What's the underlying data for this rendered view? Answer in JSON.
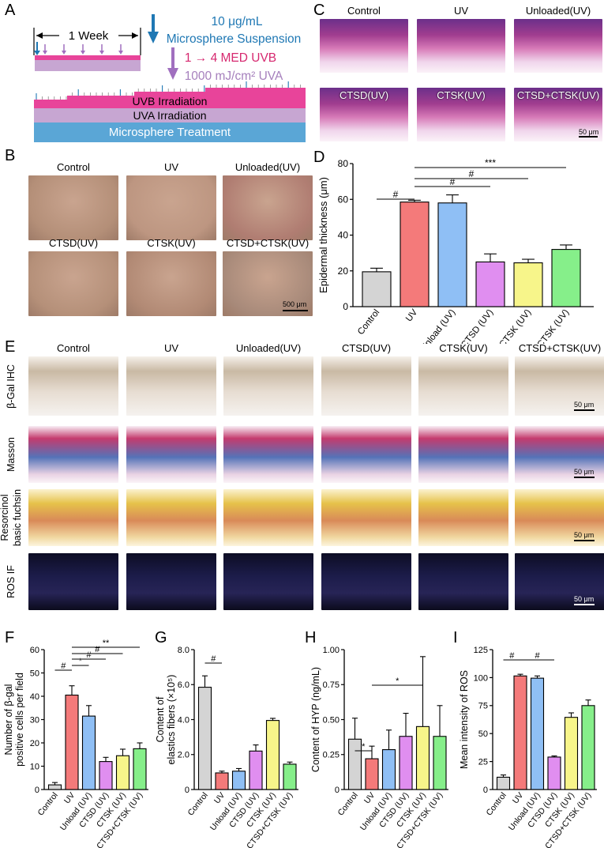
{
  "panels": {
    "A": {
      "letter": "A",
      "week_label": "1 Week",
      "dose_label": "10 μg/mL",
      "suspension_label": "Microsphere Suspension",
      "uvb_label": "1 → 4 MED UVB",
      "uva_label": "1000 mJ/cm² UVA",
      "bars": [
        "UVB Irradiation",
        "UVA Irradiation",
        "Microsphere Treatment"
      ],
      "colors": {
        "uvb": "#e8449a",
        "uva": "#c7a6d2",
        "treat": "#5aa6d6",
        "arrow_blue": "#1f78b4",
        "arrow_purple": "#a06fbf"
      }
    },
    "B": {
      "letter": "B",
      "labels": [
        "Control",
        "UV",
        "Unloaded(UV)",
        "CTSD(UV)",
        "CTSK(UV)",
        "CTSD+CTSK(UV)"
      ],
      "scale": "500 μm"
    },
    "C": {
      "letter": "C",
      "labels": [
        "Control",
        "UV",
        "Unloaded(UV)",
        "CTSD(UV)",
        "CTSK(UV)",
        "CTSD+CTSK(UV)"
      ],
      "scale": "50 μm"
    },
    "E": {
      "letter": "E",
      "columns": [
        "Control",
        "UV",
        "Unloaded(UV)",
        "CTSD(UV)",
        "CTSK(UV)",
        "CTSD+CTSK(UV)"
      ],
      "rows": [
        "β-Gal IHC",
        "Masson",
        "Resorcinol basic fuchsin",
        "ROS IF"
      ],
      "scales": [
        "50 μm",
        "50 μm",
        "50 μm",
        "50 μm"
      ]
    }
  },
  "chart_data": [
    {
      "id": "D",
      "letter": "D",
      "type": "bar",
      "categories": [
        "Control",
        "UV",
        "Unload (UV)",
        "CTSD (UV)",
        "CTSK (UV)",
        "CTSD+CTSK (UV)"
      ],
      "values": [
        19.5,
        58.5,
        58,
        25,
        24.5,
        32
      ],
      "errors": [
        2,
        1,
        4.5,
        4.5,
        2,
        2.5
      ],
      "colors": [
        "#d4d4d4",
        "#f47a7a",
        "#8fbff5",
        "#e08ef0",
        "#f7f58a",
        "#86ef8a"
      ],
      "ylabel": "Epidermal thickness (μm)",
      "ylim": [
        0,
        80
      ],
      "yticks": [
        0,
        20,
        40,
        60,
        80
      ],
      "annotations": [
        {
          "from": 0,
          "to": 1,
          "label": "#"
        },
        {
          "from": 1,
          "to": 3,
          "label": "#"
        },
        {
          "from": 1,
          "to": 4,
          "label": "#"
        },
        {
          "from": 1,
          "to": 5,
          "label": "***"
        }
      ]
    },
    {
      "id": "F",
      "letter": "F",
      "type": "bar",
      "categories": [
        "Control",
        "UV",
        "Unload (UV)",
        "CTSD (UV)",
        "CTSK (UV)",
        "CTSD+CTSK (UV)"
      ],
      "values": [
        2,
        40.5,
        31.5,
        12,
        14.5,
        17.5
      ],
      "errors": [
        1,
        4,
        4.5,
        1.8,
        2.8,
        2.5
      ],
      "colors": [
        "#d4d4d4",
        "#f47a7a",
        "#8fbff5",
        "#e08ef0",
        "#f7f58a",
        "#86ef8a"
      ],
      "ylabel": "Number of β-gal positive cells per field",
      "ylim": [
        0,
        60
      ],
      "yticks": [
        0,
        10,
        20,
        30,
        40,
        50,
        60
      ],
      "annotations": [
        {
          "from": 0,
          "to": 1,
          "label": "#"
        },
        {
          "from": 1,
          "to": 2,
          "label": "*"
        },
        {
          "from": 1,
          "to": 3,
          "label": "#"
        },
        {
          "from": 1,
          "to": 4,
          "label": "#"
        },
        {
          "from": 1,
          "to": 5,
          "label": "**"
        }
      ]
    },
    {
      "id": "G",
      "letter": "G",
      "type": "bar",
      "categories": [
        "Control",
        "UV",
        "Unload (UV)",
        "CTSD (UV)",
        "CTSK (UV)",
        "CTSD+CTSK (UV)"
      ],
      "values": [
        5.85,
        0.95,
        1.05,
        2.2,
        3.95,
        1.45
      ],
      "errors": [
        0.65,
        0.1,
        0.15,
        0.35,
        0.12,
        0.12
      ],
      "colors": [
        "#d4d4d4",
        "#f47a7a",
        "#8fbff5",
        "#e08ef0",
        "#f7f58a",
        "#86ef8a"
      ],
      "ylabel": "Content of elastics fibers (×10⁵)",
      "ylim": [
        0,
        8
      ],
      "yticks": [
        0,
        2,
        4,
        6,
        8
      ],
      "ytick_labels": [
        "0",
        "2.0",
        "4.0",
        "6.0",
        "8.0"
      ],
      "annotations": [
        {
          "from": 0,
          "to": 1,
          "label": "#"
        }
      ]
    },
    {
      "id": "H",
      "letter": "H",
      "type": "bar",
      "categories": [
        "Control",
        "UV",
        "Unload (UV)",
        "CTSD (UV)",
        "CTSK (UV)",
        "CTSD+CTSK (UV)"
      ],
      "values": [
        0.36,
        0.22,
        0.285,
        0.38,
        0.45,
        0.38
      ],
      "errors": [
        0.15,
        0.09,
        0.14,
        0.165,
        0.5,
        0.22
      ],
      "colors": [
        "#d4d4d4",
        "#f47a7a",
        "#8fbff5",
        "#e08ef0",
        "#f7f58a",
        "#86ef8a"
      ],
      "ylabel": "Content of HYP (ng/mL)",
      "ylim": [
        0,
        1
      ],
      "yticks": [
        0,
        0.25,
        0.5,
        0.75,
        1
      ],
      "ytick_labels": [
        "0",
        "0.25",
        "0.50",
        "0.75",
        "1.00"
      ],
      "annotations": [
        {
          "from": 0,
          "to": 1,
          "label": "*"
        },
        {
          "from": 1,
          "to": 4,
          "label": "*"
        }
      ]
    },
    {
      "id": "I",
      "letter": "I",
      "type": "bar",
      "categories": [
        "Control",
        "UV",
        "Unload (UV)",
        "CTSD (UV)",
        "CTSK (UV)",
        "CTSD+CTSK (UV)"
      ],
      "values": [
        11,
        101.5,
        99.5,
        29,
        64.5,
        75
      ],
      "errors": [
        2,
        1.5,
        2,
        1,
        4,
        5
      ],
      "colors": [
        "#d4d4d4",
        "#f47a7a",
        "#8fbff5",
        "#e08ef0",
        "#f7f58a",
        "#86ef8a"
      ],
      "ylabel": "Mean intensity of ROS",
      "ylim": [
        0,
        125
      ],
      "yticks": [
        0,
        25,
        50,
        75,
        100,
        125
      ],
      "annotations": [
        {
          "from": 0,
          "to": 1,
          "label": "#"
        },
        {
          "from": 1,
          "to": 3,
          "label": "#"
        }
      ]
    }
  ]
}
